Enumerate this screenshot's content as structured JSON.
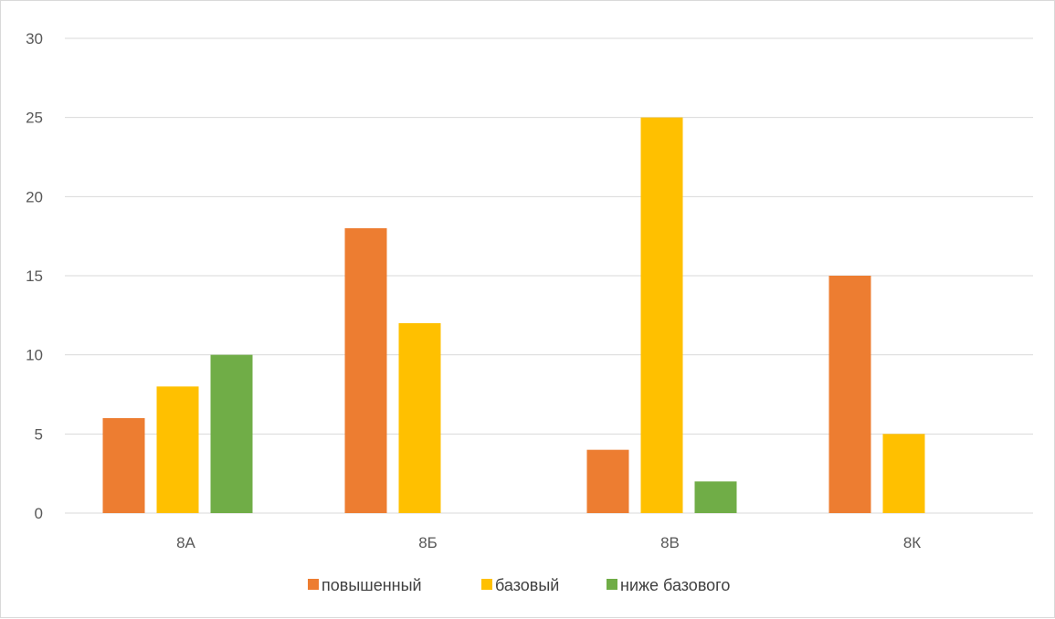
{
  "chart_data": {
    "type": "bar",
    "categories": [
      "8А",
      "8Б",
      "8В",
      "8К"
    ],
    "series": [
      {
        "name": "повышенный",
        "color": "#ED7D31",
        "values": [
          6,
          18,
          4,
          15
        ]
      },
      {
        "name": "базовый",
        "color": "#FFC000",
        "values": [
          8,
          12,
          25,
          5
        ]
      },
      {
        "name": "ниже базового",
        "color": "#70AD47",
        "values": [
          10,
          0,
          2,
          0
        ]
      }
    ],
    "y_ticks": [
      "0",
      "5",
      "10",
      "15",
      "20",
      "25",
      "30"
    ],
    "ylim": [
      0,
      30
    ],
    "grid": true,
    "legend": "bottom"
  }
}
